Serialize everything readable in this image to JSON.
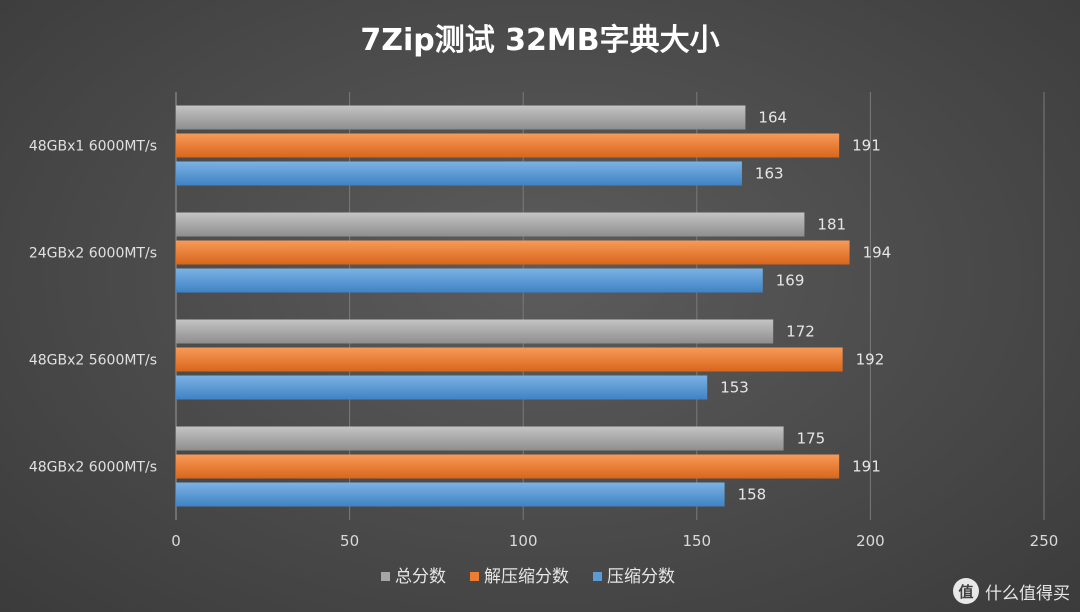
{
  "chart_data": {
    "type": "bar",
    "orientation": "horizontal",
    "title": "7Zip测试 32MB字典大小",
    "categories": [
      "48GBx1 6000MT/s",
      "24GBx2 6000MT/s",
      "48GBx2 5600MT/s",
      "48GBx2 6000MT/s"
    ],
    "series": [
      {
        "name": "总分数",
        "values": [
          164,
          181,
          172,
          175
        ],
        "color": "#a6a6a6"
      },
      {
        "name": "解压缩分数",
        "values": [
          191,
          194,
          192,
          191
        ],
        "color": "#ed7d31"
      },
      {
        "name": "压缩分数",
        "values": [
          163,
          169,
          153,
          158
        ],
        "color": "#5b9bd5"
      }
    ],
    "xlim": [
      0,
      250
    ],
    "xticks": [
      0,
      50,
      100,
      150,
      200,
      250
    ],
    "grid": true,
    "legend_position": "bottom",
    "data_labels": true
  },
  "watermark": {
    "icon": "值",
    "text": "什么值得买"
  }
}
